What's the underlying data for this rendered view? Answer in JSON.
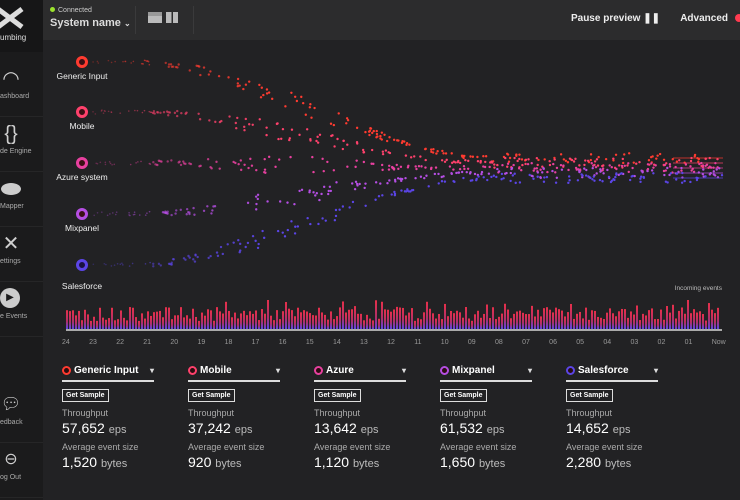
{
  "sidebar": {
    "logo_label": "umbing",
    "items": [
      {
        "label": "ashboard",
        "icon": "gauge-icon"
      },
      {
        "label": "de Engine",
        "icon": "braces-icon"
      },
      {
        "label": "Mapper",
        "icon": "database-icon"
      },
      {
        "label": "ettings",
        "icon": "tools-icon"
      },
      {
        "label": "e Events",
        "icon": "play-icon"
      },
      {
        "label": "edback",
        "icon": "chat-icon"
      },
      {
        "label": "og Out",
        "icon": "logout-icon"
      }
    ]
  },
  "header": {
    "status": "Connected",
    "system_name": "System name",
    "pause_label": "Pause preview",
    "advanced_label": "Advanced"
  },
  "sources": [
    {
      "name": "Generic Input",
      "color": "#ff3b30"
    },
    {
      "name": "Mobile",
      "color": "#ff416c"
    },
    {
      "name": "Azure system",
      "color": "#e8409f"
    },
    {
      "name": "Mixpanel",
      "color": "#b54ee3"
    },
    {
      "name": "Salesforce",
      "color": "#5b45e6"
    }
  ],
  "histogram": {
    "label": "Incoming events",
    "ticks": [
      "24",
      "23",
      "22",
      "21",
      "20",
      "19",
      "18",
      "17",
      "16",
      "15",
      "14",
      "13",
      "12",
      "11",
      "10",
      "09",
      "08",
      "07",
      "06",
      "05",
      "04",
      "03",
      "02",
      "01",
      "Now"
    ]
  },
  "cards": [
    {
      "name": "Generic Input",
      "color": "#ff3b30",
      "button": "Get Sample",
      "throughput_label": "Throughput",
      "throughput": "57,652",
      "throughput_unit": "eps",
      "size_label": "Average event size",
      "size": "1,520",
      "size_unit": "bytes"
    },
    {
      "name": "Mobile",
      "color": "#ff416c",
      "button": "Get Sample",
      "throughput_label": "Throughput",
      "throughput": "37,242",
      "throughput_unit": "eps",
      "size_label": "Average event size",
      "size": "920",
      "size_unit": "bytes"
    },
    {
      "name": "Azure",
      "color": "#e8409f",
      "button": "Get Sample",
      "throughput_label": "Throughput",
      "throughput": "13,642",
      "throughput_unit": "eps",
      "size_label": "Average event size",
      "size": "1,120",
      "size_unit": "bytes"
    },
    {
      "name": "Mixpanel",
      "color": "#b54ee3",
      "button": "Get Sample",
      "throughput_label": "Throughput",
      "throughput": "61,532",
      "throughput_unit": "eps",
      "size_label": "Average event size",
      "size": "1,650",
      "size_unit": "bytes"
    },
    {
      "name": "Salesforce",
      "color": "#5b45e6",
      "button": "Get Sample",
      "throughput_label": "Throughput",
      "throughput": "14,652",
      "throughput_unit": "eps",
      "size_label": "Average event size",
      "size": "2,280",
      "size_unit": "bytes"
    }
  ]
}
